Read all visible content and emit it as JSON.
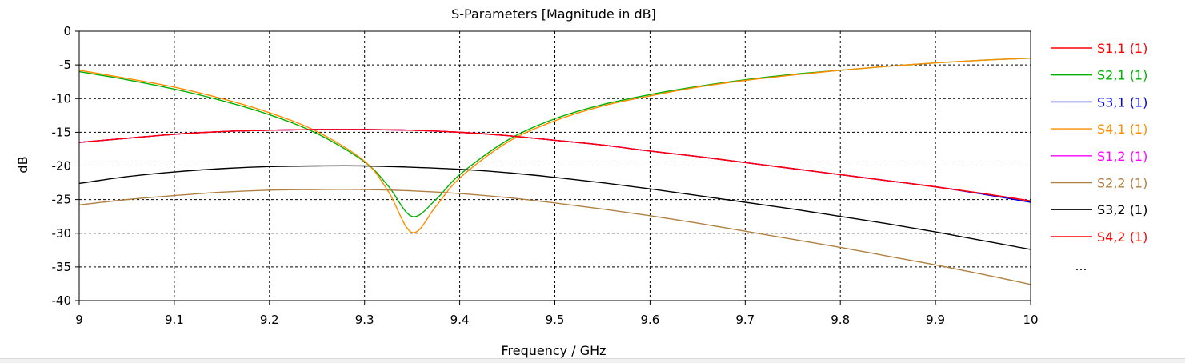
{
  "chart_data": {
    "type": "line",
    "title": "S-Parameters [Magnitude in dB]",
    "xlabel": "Frequency / GHz",
    "ylabel": "dB",
    "xlim": [
      9,
      10
    ],
    "ylim": [
      -40,
      0
    ],
    "x_ticks": [
      "9",
      "9.1",
      "9.2",
      "9.3",
      "9.4",
      "9.5",
      "9.6",
      "9.7",
      "9.8",
      "9.9",
      "10"
    ],
    "y_ticks": [
      "0",
      "-5",
      "-10",
      "-15",
      "-20",
      "-25",
      "-30",
      "-35",
      "-40"
    ],
    "grid": true,
    "legend_position": "right",
    "legend_more": "...",
    "series": [
      {
        "name": "S1,1 (1)",
        "color": "#ff0000",
        "x": [
          9,
          9.05,
          9.1,
          9.15,
          9.2,
          9.25,
          9.3,
          9.35,
          9.4,
          9.45,
          9.5,
          9.55,
          9.6,
          9.65,
          9.7,
          9.75,
          9.8,
          9.85,
          9.9,
          9.95,
          10
        ],
        "y": [
          -16.5,
          -15.9,
          -15.3,
          -14.9,
          -14.7,
          -14.6,
          -14.6,
          -14.7,
          -15.0,
          -15.5,
          -16.2,
          -16.9,
          -17.8,
          -18.6,
          -19.5,
          -20.4,
          -21.3,
          -22.2,
          -23.1,
          -24.1,
          -25.2
        ]
      },
      {
        "name": "S2,1 (1)",
        "color": "#00b000",
        "x": [
          9,
          9.05,
          9.1,
          9.15,
          9.2,
          9.25,
          9.3,
          9.325,
          9.35,
          9.375,
          9.4,
          9.45,
          9.5,
          9.55,
          9.6,
          9.65,
          9.7,
          9.75,
          9.8,
          9.85,
          9.9,
          9.95,
          10
        ],
        "y": [
          -6.0,
          -7.2,
          -8.6,
          -10.3,
          -12.4,
          -15.2,
          -19.4,
          -23.0,
          -27.5,
          -25.0,
          -21.3,
          -16.2,
          -13.0,
          -10.9,
          -9.4,
          -8.2,
          -7.2,
          -6.4,
          -5.8,
          -5.2,
          -4.7,
          -4.3,
          -4.0
        ]
      },
      {
        "name": "S3,1 (1)",
        "color": "#0000e0",
        "x": [
          9,
          9.05,
          9.1,
          9.15,
          9.2,
          9.25,
          9.3,
          9.35,
          9.4,
          9.45,
          9.5,
          9.55,
          9.6,
          9.65,
          9.7,
          9.75,
          9.8,
          9.85,
          9.9,
          9.95,
          10
        ],
        "y": [
          -16.5,
          -15.9,
          -15.3,
          -14.9,
          -14.7,
          -14.6,
          -14.6,
          -14.7,
          -15.0,
          -15.5,
          -16.2,
          -16.9,
          -17.8,
          -18.6,
          -19.5,
          -20.4,
          -21.3,
          -22.2,
          -23.1,
          -24.2,
          -25.4
        ]
      },
      {
        "name": "S4,1 (1)",
        "color": "#ff8c00",
        "x": [
          9,
          9.05,
          9.1,
          9.15,
          9.2,
          9.25,
          9.3,
          9.325,
          9.35,
          9.375,
          9.4,
          9.45,
          9.5,
          9.55,
          9.6,
          9.65,
          9.7,
          9.75,
          9.8,
          9.85,
          9.9,
          9.95,
          10
        ],
        "y": [
          -5.8,
          -7.0,
          -8.3,
          -10.0,
          -12.1,
          -14.9,
          -19.3,
          -23.8,
          -29.9,
          -26.0,
          -21.8,
          -16.5,
          -13.3,
          -11.1,
          -9.6,
          -8.3,
          -7.3,
          -6.5,
          -5.8,
          -5.2,
          -4.7,
          -4.3,
          -4.0
        ]
      },
      {
        "name": "S1,2 (1)",
        "color": "#ff00ff",
        "x": [
          9,
          9.05,
          9.1,
          9.15,
          9.2,
          9.25,
          9.3,
          9.35,
          9.4,
          9.45,
          9.5,
          9.55,
          9.6,
          9.65,
          9.7,
          9.75,
          9.8,
          9.85,
          9.9,
          9.95,
          10
        ],
        "y": [
          -16.5,
          -15.9,
          -15.3,
          -14.9,
          -14.7,
          -14.6,
          -14.6,
          -14.7,
          -15.0,
          -15.5,
          -16.2,
          -16.9,
          -17.8,
          -18.6,
          -19.5,
          -20.4,
          -21.3,
          -22.2,
          -23.1,
          -24.1,
          -25.2
        ]
      },
      {
        "name": "S2,2 (1)",
        "color": "#b08040",
        "x": [
          9,
          9.05,
          9.1,
          9.15,
          9.2,
          9.25,
          9.3,
          9.35,
          9.4,
          9.45,
          9.5,
          9.55,
          9.6,
          9.65,
          9.7,
          9.75,
          9.8,
          9.85,
          9.9,
          9.95,
          10
        ],
        "y": [
          -25.8,
          -25.0,
          -24.4,
          -23.9,
          -23.6,
          -23.5,
          -23.5,
          -23.7,
          -24.1,
          -24.7,
          -25.5,
          -26.4,
          -27.4,
          -28.5,
          -29.7,
          -30.9,
          -32.1,
          -33.4,
          -34.7,
          -36.1,
          -37.6
        ]
      },
      {
        "name": "S3,2 (1)",
        "color": "#000000",
        "x": [
          9,
          9.05,
          9.1,
          9.15,
          9.2,
          9.25,
          9.3,
          9.35,
          9.4,
          9.45,
          9.5,
          9.55,
          9.6,
          9.65,
          9.7,
          9.75,
          9.8,
          9.85,
          9.9,
          9.95,
          10
        ],
        "y": [
          -22.6,
          -21.6,
          -20.9,
          -20.4,
          -20.1,
          -20.0,
          -20.0,
          -20.2,
          -20.5,
          -21.0,
          -21.7,
          -22.5,
          -23.4,
          -24.4,
          -25.4,
          -26.4,
          -27.5,
          -28.6,
          -29.8,
          -31.1,
          -32.4
        ]
      },
      {
        "name": "S4,2 (1)",
        "color": "#ff0000",
        "x": [
          9,
          9.05,
          9.1,
          9.15,
          9.2,
          9.25,
          9.3,
          9.35,
          9.4,
          9.45,
          9.5,
          9.55,
          9.6,
          9.65,
          9.7,
          9.75,
          9.8,
          9.85,
          9.9,
          9.95,
          10
        ],
        "y": [
          -16.5,
          -15.9,
          -15.3,
          -14.9,
          -14.7,
          -14.6,
          -14.6,
          -14.7,
          -15.0,
          -15.5,
          -16.2,
          -16.9,
          -17.8,
          -18.6,
          -19.5,
          -20.4,
          -21.3,
          -22.2,
          -23.1,
          -24.1,
          -25.2
        ]
      }
    ]
  }
}
